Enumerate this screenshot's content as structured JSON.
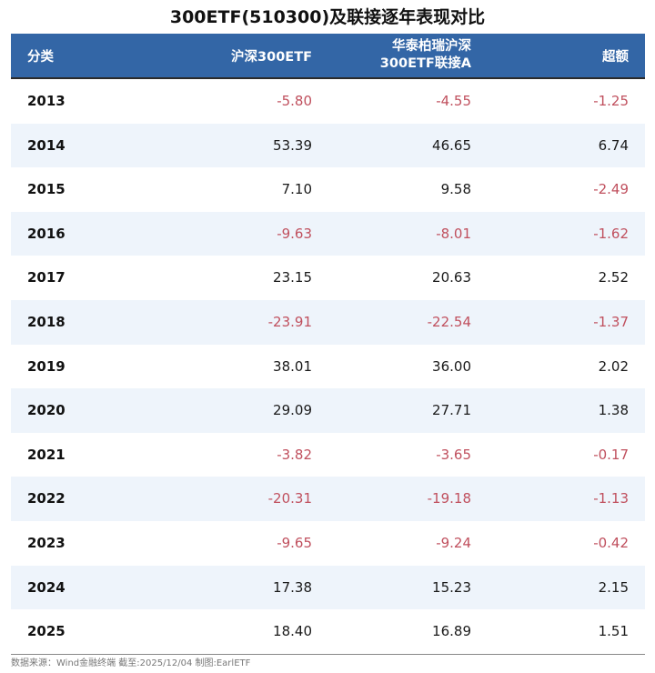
{
  "title": "300ETF(510300)及联接逐年表现对比",
  "header": {
    "col0": "分类",
    "col1": "沪深300ETF",
    "col2_line1": "华泰柏瑞沪深",
    "col2_line2": "300ETF联接A",
    "col3": "超额"
  },
  "rows": [
    {
      "year": "2013",
      "etf": "-5.80",
      "feeder": "-4.55",
      "excess": "-1.25"
    },
    {
      "year": "2014",
      "etf": "53.39",
      "feeder": "46.65",
      "excess": "6.74"
    },
    {
      "year": "2015",
      "etf": "7.10",
      "feeder": "9.58",
      "excess": "-2.49"
    },
    {
      "year": "2016",
      "etf": "-9.63",
      "feeder": "-8.01",
      "excess": "-1.62"
    },
    {
      "year": "2017",
      "etf": "23.15",
      "feeder": "20.63",
      "excess": "2.52"
    },
    {
      "year": "2018",
      "etf": "-23.91",
      "feeder": "-22.54",
      "excess": "-1.37"
    },
    {
      "year": "2019",
      "etf": "38.01",
      "feeder": "36.00",
      "excess": "2.02"
    },
    {
      "year": "2020",
      "etf": "29.09",
      "feeder": "27.71",
      "excess": "1.38"
    },
    {
      "year": "2021",
      "etf": "-3.82",
      "feeder": "-3.65",
      "excess": "-0.17"
    },
    {
      "year": "2022",
      "etf": "-20.31",
      "feeder": "-19.18",
      "excess": "-1.13"
    },
    {
      "year": "2023",
      "etf": "-9.65",
      "feeder": "-9.24",
      "excess": "-0.42"
    },
    {
      "year": "2024",
      "etf": "17.38",
      "feeder": "15.23",
      "excess": "2.15"
    },
    {
      "year": "2025",
      "etf": "18.40",
      "feeder": "16.89",
      "excess": "1.51"
    }
  ],
  "footer": "数据来源：Wind金融终端 截至:2025/12/04 制图:EarlETF",
  "colors": {
    "header_bg": "#3366a6",
    "alt_row_bg": "#eef4fb",
    "negative": "#c0505e",
    "positive": "#1a1a1a"
  }
}
